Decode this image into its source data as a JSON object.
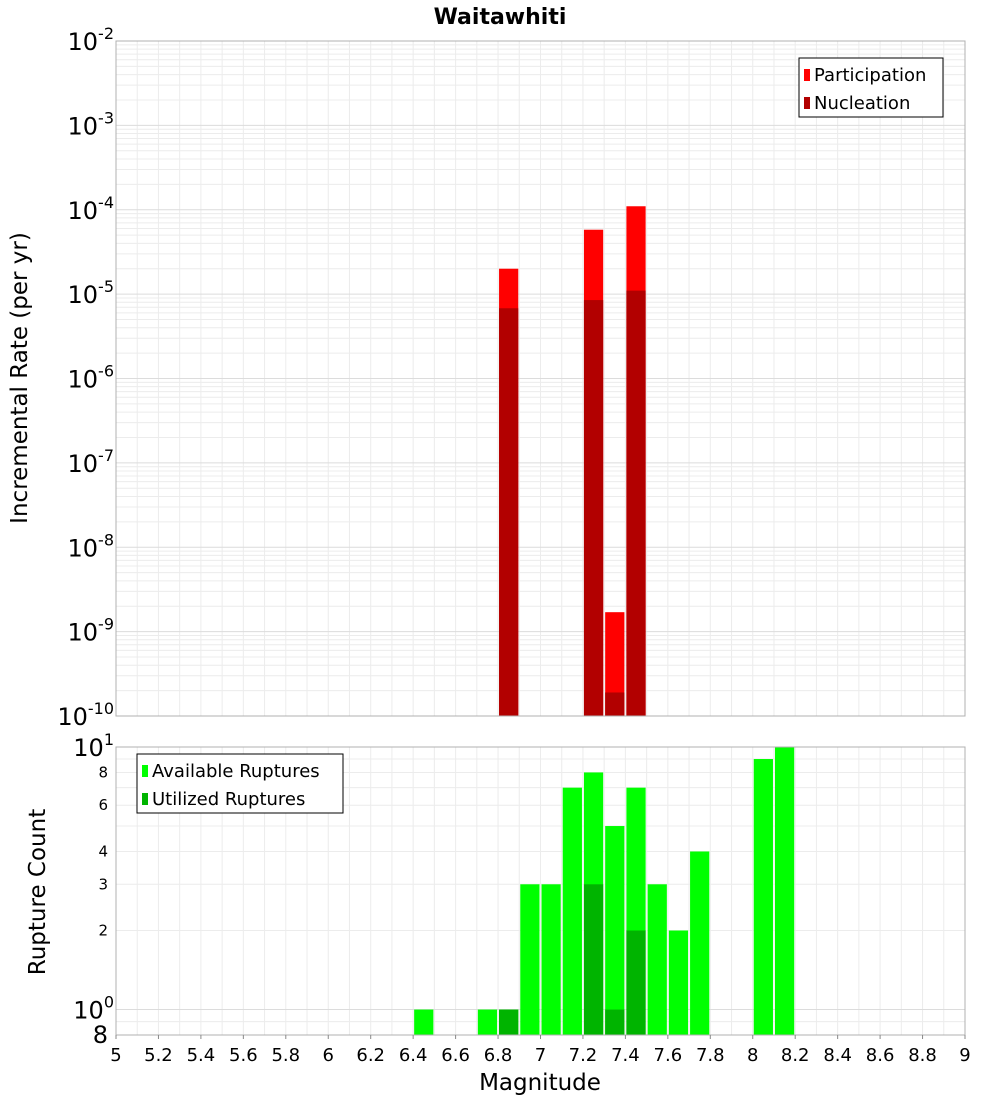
{
  "chart_data": [
    {
      "type": "bar",
      "title": "Waitawhiti",
      "xlabel": "",
      "ylabel": "Incremental Rate (per yr)",
      "yscale": "log",
      "xlim": [
        5,
        9
      ],
      "ylim": [
        1e-10,
        0.01
      ],
      "bin_width": 0.1,
      "grid": true,
      "legend_position": "top-right",
      "y_ticks": [
        {
          "base": "10",
          "exp": "-2",
          "value": 0.01
        },
        {
          "base": "10",
          "exp": "-3",
          "value": 0.001
        },
        {
          "base": "10",
          "exp": "-4",
          "value": 0.0001
        },
        {
          "base": "10",
          "exp": "-5",
          "value": 1e-05
        },
        {
          "base": "10",
          "exp": "-6",
          "value": 1e-06
        },
        {
          "base": "10",
          "exp": "-7",
          "value": 1e-07
        },
        {
          "base": "10",
          "exp": "-8",
          "value": 1e-08
        },
        {
          "base": "10",
          "exp": "-9",
          "value": 1e-09
        },
        {
          "base": "10",
          "exp": "-10",
          "value": 1e-10
        }
      ],
      "series": [
        {
          "name": "Participation",
          "color": "#ff0000",
          "x": [
            6.85,
            7.25,
            7.35,
            7.45
          ],
          "values": [
            2e-05,
            5.8e-05,
            1.7e-09,
            0.00011
          ]
        },
        {
          "name": "Nucleation",
          "color": "#b20000",
          "x": [
            6.85,
            7.25,
            7.35,
            7.45
          ],
          "values": [
            6.8e-06,
            8.5e-06,
            1.9e-10,
            1.1e-05
          ]
        }
      ]
    },
    {
      "type": "bar",
      "title": "",
      "xlabel": "Magnitude",
      "ylabel": "Rupture Count",
      "yscale": "log",
      "xlim": [
        5,
        9
      ],
      "ylim": [
        0.8,
        10
      ],
      "bin_width": 0.1,
      "grid": true,
      "legend_position": "top-left",
      "x_ticks": [
        "5",
        "5.2",
        "5.4",
        "5.6",
        "5.8",
        "6",
        "6.2",
        "6.4",
        "6.6",
        "6.8",
        "7",
        "7.2",
        "7.4",
        "7.6",
        "7.8",
        "8",
        "8.2",
        "8.4",
        "8.6",
        "8.8",
        "9"
      ],
      "y_major_ticks": [
        {
          "base": "10",
          "exp": "1",
          "value": 10
        },
        {
          "base": "10",
          "exp": "0",
          "value": 1
        }
      ],
      "y_minor_ticks": [
        {
          "label": "8",
          "value": 8
        },
        {
          "label": "6",
          "value": 6
        },
        {
          "label": "4",
          "value": 4
        },
        {
          "label": "3",
          "value": 3
        },
        {
          "label": "2",
          "value": 2
        }
      ],
      "y_bottom_label": {
        "label": "8",
        "value": 0.8
      },
      "series": [
        {
          "name": "Available Ruptures",
          "color": "#00ff00",
          "x": [
            6.45,
            6.75,
            6.85,
            6.95,
            7.05,
            7.15,
            7.25,
            7.35,
            7.45,
            7.55,
            7.65,
            7.75,
            8.05,
            8.15
          ],
          "values": [
            1,
            1,
            1,
            3,
            3,
            7,
            8,
            5,
            7,
            3,
            2,
            4,
            9,
            10
          ]
        },
        {
          "name": "Utilized Ruptures",
          "color": "#00b400",
          "x": [
            6.85,
            7.25,
            7.35,
            7.45
          ],
          "values": [
            1,
            3,
            1,
            2
          ]
        }
      ]
    }
  ]
}
